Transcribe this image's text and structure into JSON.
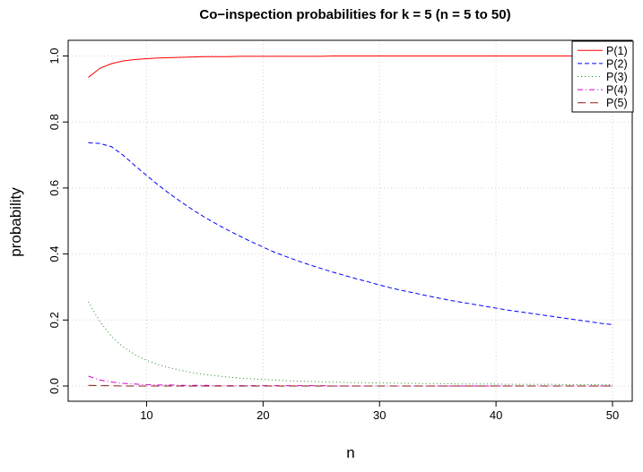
{
  "chart_data": {
    "type": "line",
    "title": "Co−inspection probabilities for k = 5 (n = 5 to 50)",
    "xlabel": "n",
    "ylabel": "probability",
    "xlim": [
      5,
      50
    ],
    "ylim": [
      0,
      1
    ],
    "xticks": [
      10,
      20,
      30,
      40,
      50
    ],
    "yticks": [
      0.0,
      0.2,
      0.4,
      0.6,
      0.8,
      1.0
    ],
    "ytick_labels": [
      "0.0",
      "0.2",
      "0.4",
      "0.6",
      "0.8",
      "1.0"
    ],
    "grid": true,
    "legend_position": "top-right",
    "x": [
      5,
      6,
      7,
      8,
      9,
      10,
      11,
      12,
      13,
      14,
      15,
      16,
      17,
      18,
      19,
      20,
      21,
      22,
      23,
      24,
      25,
      26,
      27,
      28,
      29,
      30,
      31,
      32,
      33,
      34,
      35,
      36,
      37,
      38,
      39,
      40,
      41,
      42,
      43,
      44,
      45,
      46,
      47,
      48,
      49,
      50
    ],
    "series": [
      {
        "name": "P(1)",
        "color": "#ff0000",
        "dash": "solid",
        "values": [
          0.935,
          0.963,
          0.977,
          0.985,
          0.989,
          0.992,
          0.994,
          0.995,
          0.996,
          0.997,
          0.998,
          0.998,
          0.998,
          0.999,
          0.999,
          0.999,
          0.999,
          0.999,
          0.999,
          0.999,
          0.999,
          1.0,
          1.0,
          1.0,
          1.0,
          1.0,
          1.0,
          1.0,
          1.0,
          1.0,
          1.0,
          1.0,
          1.0,
          1.0,
          1.0,
          1.0,
          1.0,
          1.0,
          1.0,
          1.0,
          1.0,
          1.0,
          1.0,
          1.0,
          1.0,
          1.0
        ]
      },
      {
        "name": "P(2)",
        "color": "#0000ff",
        "dash": "5,3",
        "values": [
          0.737,
          0.735,
          0.725,
          0.699,
          0.668,
          0.638,
          0.609,
          0.582,
          0.557,
          0.533,
          0.511,
          0.491,
          0.472,
          0.454,
          0.437,
          0.421,
          0.405,
          0.392,
          0.379,
          0.367,
          0.356,
          0.345,
          0.335,
          0.325,
          0.316,
          0.306,
          0.297,
          0.289,
          0.282,
          0.274,
          0.267,
          0.26,
          0.254,
          0.248,
          0.242,
          0.236,
          0.23,
          0.225,
          0.22,
          0.215,
          0.21,
          0.205,
          0.2,
          0.195,
          0.19,
          0.186
        ]
      },
      {
        "name": "P(3)",
        "color": "#228b22",
        "dash": "1,3",
        "values": [
          0.255,
          0.195,
          0.15,
          0.118,
          0.095,
          0.078,
          0.065,
          0.055,
          0.047,
          0.04,
          0.035,
          0.031,
          0.027,
          0.024,
          0.022,
          0.02,
          0.018,
          0.016,
          0.015,
          0.014,
          0.013,
          0.012,
          0.011,
          0.01,
          0.01,
          0.009,
          0.009,
          0.008,
          0.008,
          0.007,
          0.007,
          0.007,
          0.006,
          0.006,
          0.006,
          0.006,
          0.005,
          0.005,
          0.005,
          0.005,
          0.005,
          0.004,
          0.004,
          0.004,
          0.004,
          0.004
        ]
      },
      {
        "name": "P(4)",
        "color": "#cc00cc",
        "dash": "6,3,1,3",
        "values": [
          0.03,
          0.018,
          0.012,
          0.008,
          0.006,
          0.004,
          0.003,
          0.003,
          0.002,
          0.002,
          0.002,
          0.001,
          0.001,
          0.001,
          0.001,
          0.001,
          0.001,
          0.001,
          0.001,
          0.001,
          0.001,
          0.0,
          0.0,
          0.0,
          0.0,
          0.0,
          0.0,
          0.0,
          0.0,
          0.0,
          0.0,
          0.0,
          0.0,
          0.0,
          0.0,
          0.0,
          0.0,
          0.0,
          0.0,
          0.0,
          0.0,
          0.0,
          0.0,
          0.0,
          0.0,
          0.0
        ]
      },
      {
        "name": "P(5)",
        "color": "#8b1a1a",
        "dash": "9,5",
        "values": [
          0.002,
          0.001,
          0.001,
          0.0,
          0.0,
          0.0,
          0.0,
          0.0,
          0.0,
          0.0,
          0.0,
          0.0,
          0.0,
          0.0,
          0.0,
          0.0,
          0.0,
          0.0,
          0.0,
          0.0,
          0.0,
          0.0,
          0.0,
          0.0,
          0.0,
          0.0,
          0.0,
          0.0,
          0.0,
          0.0,
          0.0,
          0.0,
          0.0,
          0.0,
          0.0,
          0.0,
          0.0,
          0.0,
          0.0,
          0.0,
          0.0,
          0.0,
          0.0,
          0.0,
          0.0,
          0.0
        ]
      }
    ]
  }
}
